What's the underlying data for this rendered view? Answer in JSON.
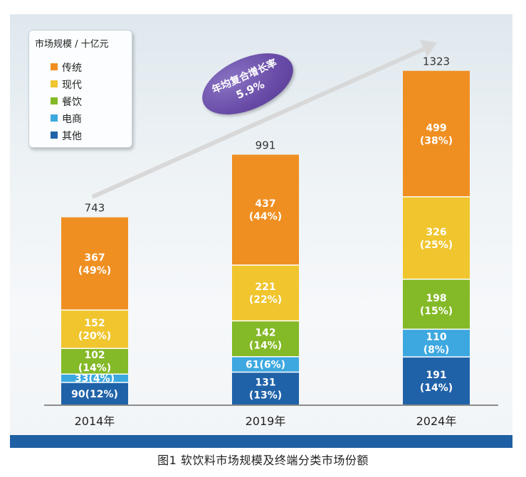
{
  "caption": "图1   软饮料市场规模及终端分类市场份额",
  "legend": {
    "title": "市场规模 / 十亿元",
    "items": [
      {
        "label": "传统",
        "color": "#ef8f22"
      },
      {
        "label": "现代",
        "color": "#f0c52e"
      },
      {
        "label": "餐饮",
        "color": "#84b927"
      },
      {
        "label": "电商",
        "color": "#3da8e0"
      },
      {
        "label": "其他",
        "color": "#2062a8"
      }
    ]
  },
  "cagr": {
    "line1": "年均复合增长率",
    "line2": "5.9%"
  },
  "chart_data": {
    "type": "bar",
    "stacked": true,
    "unit": "十亿元",
    "categories": [
      "2014年",
      "2019年",
      "2024年"
    ],
    "totals": [
      743,
      991,
      1323
    ],
    "series": [
      {
        "name": "其他",
        "color": "#2062a8",
        "values": [
          90,
          131,
          191
        ],
        "labels": [
          "90(12%)",
          "131\n(13%)",
          "191\n(14%)"
        ]
      },
      {
        "name": "电商",
        "color": "#3da8e0",
        "values": [
          33,
          61,
          110
        ],
        "labels": [
          "33(4%)",
          "61(6%)",
          "110\n(8%)"
        ]
      },
      {
        "name": "餐饮",
        "color": "#84b927",
        "values": [
          102,
          142,
          198
        ],
        "labels": [
          "102\n(14%)",
          "142\n(14%)",
          "198\n(15%)"
        ]
      },
      {
        "name": "现代",
        "color": "#f0c52e",
        "values": [
          152,
          221,
          326
        ],
        "labels": [
          "152\n(20%)",
          "221\n(22%)",
          "326\n(25%)"
        ]
      },
      {
        "name": "传统",
        "color": "#ef8f22",
        "values": [
          367,
          437,
          499
        ],
        "labels": [
          "367\n(49%)",
          "437\n(44%)",
          "499\n(38%)"
        ]
      }
    ],
    "ylim": [
      0,
      1323
    ],
    "grid": false,
    "legend_position": "top-left"
  }
}
